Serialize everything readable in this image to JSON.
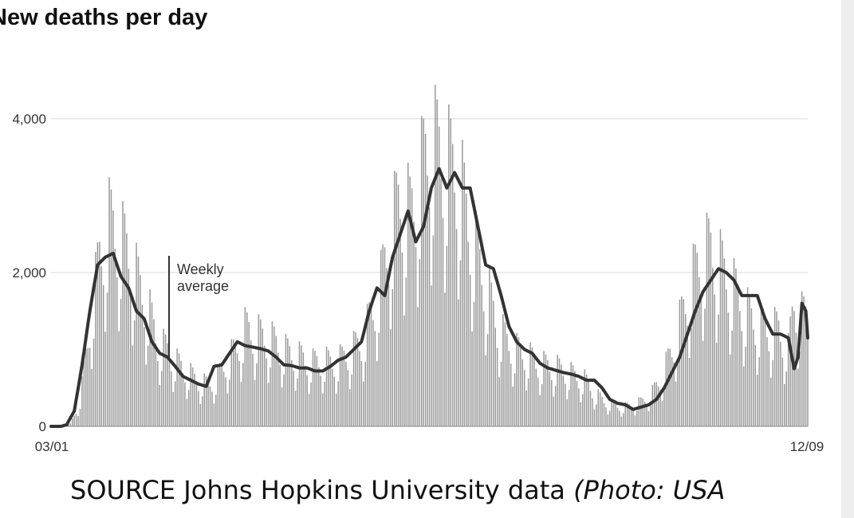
{
  "title": "New deaths per day",
  "caption": {
    "text": "SOURCE Johns Hopkins University data",
    "italic_text": "(Photo: USA"
  },
  "colors": {
    "bars": "#9a9a9a",
    "average_line": "#333333",
    "grid": "#d8d8d8",
    "text": "#111111"
  },
  "chart_data": {
    "type": "bar",
    "title": "New deaths per day",
    "x_tick_labels": [
      "03/01",
      "12/09"
    ],
    "y_ticks": [
      0,
      2000,
      4000
    ],
    "y_tick_labels": [
      "0",
      "2,000",
      "4,000"
    ],
    "ylim": [
      0,
      4600
    ],
    "grid": "horizontal",
    "annotation": {
      "text_lines": [
        "Weekly",
        "average"
      ]
    },
    "series": [
      {
        "type": "bar",
        "anchors": [
          [
            0,
            0
          ],
          [
            5,
            0
          ],
          [
            10,
            30
          ],
          [
            15,
            300
          ],
          [
            20,
            1200
          ],
          [
            25,
            2000
          ],
          [
            30,
            2400
          ],
          [
            35,
            2250
          ],
          [
            40,
            2050
          ],
          [
            45,
            1700
          ],
          [
            50,
            1400
          ],
          [
            55,
            1000
          ],
          [
            60,
            900
          ],
          [
            65,
            750
          ],
          [
            70,
            650
          ],
          [
            75,
            550
          ],
          [
            80,
            500
          ],
          [
            85,
            550
          ],
          [
            90,
            750
          ],
          [
            95,
            900
          ],
          [
            100,
            1150
          ],
          [
            105,
            1100
          ],
          [
            110,
            1050
          ],
          [
            115,
            1000
          ],
          [
            120,
            900
          ],
          [
            125,
            850
          ],
          [
            130,
            800
          ],
          [
            135,
            750
          ],
          [
            140,
            780
          ],
          [
            145,
            750
          ],
          [
            150,
            800
          ],
          [
            155,
            900
          ],
          [
            160,
            1000
          ],
          [
            165,
            1300
          ],
          [
            170,
            1700
          ],
          [
            175,
            2300
          ],
          [
            180,
            2700
          ],
          [
            185,
            2500
          ],
          [
            190,
            2900
          ],
          [
            195,
            3350
          ],
          [
            200,
            3250
          ],
          [
            205,
            3100
          ],
          [
            210,
            3000
          ],
          [
            215,
            2400
          ],
          [
            220,
            2000
          ],
          [
            225,
            1600
          ],
          [
            230,
            1200
          ],
          [
            235,
            1000
          ],
          [
            240,
            900
          ],
          [
            245,
            850
          ],
          [
            250,
            750
          ],
          [
            255,
            720
          ],
          [
            260,
            700
          ],
          [
            265,
            650
          ],
          [
            270,
            600
          ],
          [
            275,
            550
          ],
          [
            280,
            400
          ],
          [
            285,
            300
          ],
          [
            290,
            250
          ],
          [
            295,
            230
          ],
          [
            300,
            250
          ],
          [
            305,
            300
          ],
          [
            310,
            400
          ],
          [
            315,
            600
          ],
          [
            320,
            900
          ],
          [
            325,
            1300
          ],
          [
            330,
            1700
          ],
          [
            335,
            2000
          ],
          [
            340,
            2100
          ],
          [
            345,
            1900
          ],
          [
            350,
            1700
          ],
          [
            355,
            1500
          ],
          [
            360,
            1300
          ],
          [
            365,
            1200
          ],
          [
            370,
            1150
          ],
          [
            375,
            1150
          ],
          [
            380,
            900
          ],
          [
            383,
            1500
          ],
          [
            386,
            1300
          ]
        ]
      },
      {
        "type": "line",
        "name": "Weekly average",
        "anchors": [
          [
            0,
            0
          ],
          [
            5,
            0
          ],
          [
            8,
            20
          ],
          [
            12,
            200
          ],
          [
            16,
            800
          ],
          [
            20,
            1500
          ],
          [
            24,
            2100
          ],
          [
            28,
            2200
          ],
          [
            32,
            2250
          ],
          [
            36,
            1950
          ],
          [
            40,
            1800
          ],
          [
            44,
            1500
          ],
          [
            48,
            1400
          ],
          [
            52,
            1100
          ],
          [
            56,
            950
          ],
          [
            60,
            900
          ],
          [
            64,
            780
          ],
          [
            68,
            650
          ],
          [
            72,
            600
          ],
          [
            76,
            550
          ],
          [
            80,
            520
          ],
          [
            84,
            780
          ],
          [
            88,
            800
          ],
          [
            92,
            950
          ],
          [
            96,
            1100
          ],
          [
            100,
            1050
          ],
          [
            104,
            1030
          ],
          [
            108,
            1010
          ],
          [
            112,
            980
          ],
          [
            116,
            900
          ],
          [
            120,
            800
          ],
          [
            124,
            790
          ],
          [
            128,
            760
          ],
          [
            132,
            760
          ],
          [
            136,
            720
          ],
          [
            140,
            720
          ],
          [
            144,
            780
          ],
          [
            148,
            860
          ],
          [
            152,
            900
          ],
          [
            156,
            1000
          ],
          [
            160,
            1100
          ],
          [
            164,
            1500
          ],
          [
            168,
            1800
          ],
          [
            172,
            1700
          ],
          [
            176,
            2200
          ],
          [
            180,
            2500
          ],
          [
            184,
            2800
          ],
          [
            188,
            2400
          ],
          [
            192,
            2600
          ],
          [
            196,
            3100
          ],
          [
            200,
            3350
          ],
          [
            204,
            3100
          ],
          [
            208,
            3300
          ],
          [
            212,
            3100
          ],
          [
            216,
            3100
          ],
          [
            220,
            2600
          ],
          [
            224,
            2100
          ],
          [
            228,
            2050
          ],
          [
            232,
            1700
          ],
          [
            236,
            1300
          ],
          [
            240,
            1100
          ],
          [
            244,
            1000
          ],
          [
            248,
            950
          ],
          [
            252,
            820
          ],
          [
            256,
            760
          ],
          [
            260,
            730
          ],
          [
            264,
            700
          ],
          [
            268,
            680
          ],
          [
            272,
            650
          ],
          [
            276,
            600
          ],
          [
            280,
            600
          ],
          [
            284,
            500
          ],
          [
            288,
            350
          ],
          [
            292,
            300
          ],
          [
            296,
            280
          ],
          [
            300,
            220
          ],
          [
            304,
            250
          ],
          [
            308,
            280
          ],
          [
            312,
            350
          ],
          [
            316,
            500
          ],
          [
            320,
            700
          ],
          [
            324,
            900
          ],
          [
            328,
            1200
          ],
          [
            332,
            1500
          ],
          [
            336,
            1750
          ],
          [
            340,
            1900
          ],
          [
            344,
            2050
          ],
          [
            348,
            2000
          ],
          [
            352,
            1900
          ],
          [
            356,
            1700
          ],
          [
            360,
            1700
          ],
          [
            364,
            1700
          ],
          [
            368,
            1400
          ],
          [
            372,
            1200
          ],
          [
            376,
            1200
          ],
          [
            380,
            1150
          ],
          [
            383,
            750
          ],
          [
            385,
            900
          ],
          [
            387,
            1600
          ],
          [
            389,
            1500
          ],
          [
            390,
            1150
          ]
        ]
      }
    ]
  }
}
